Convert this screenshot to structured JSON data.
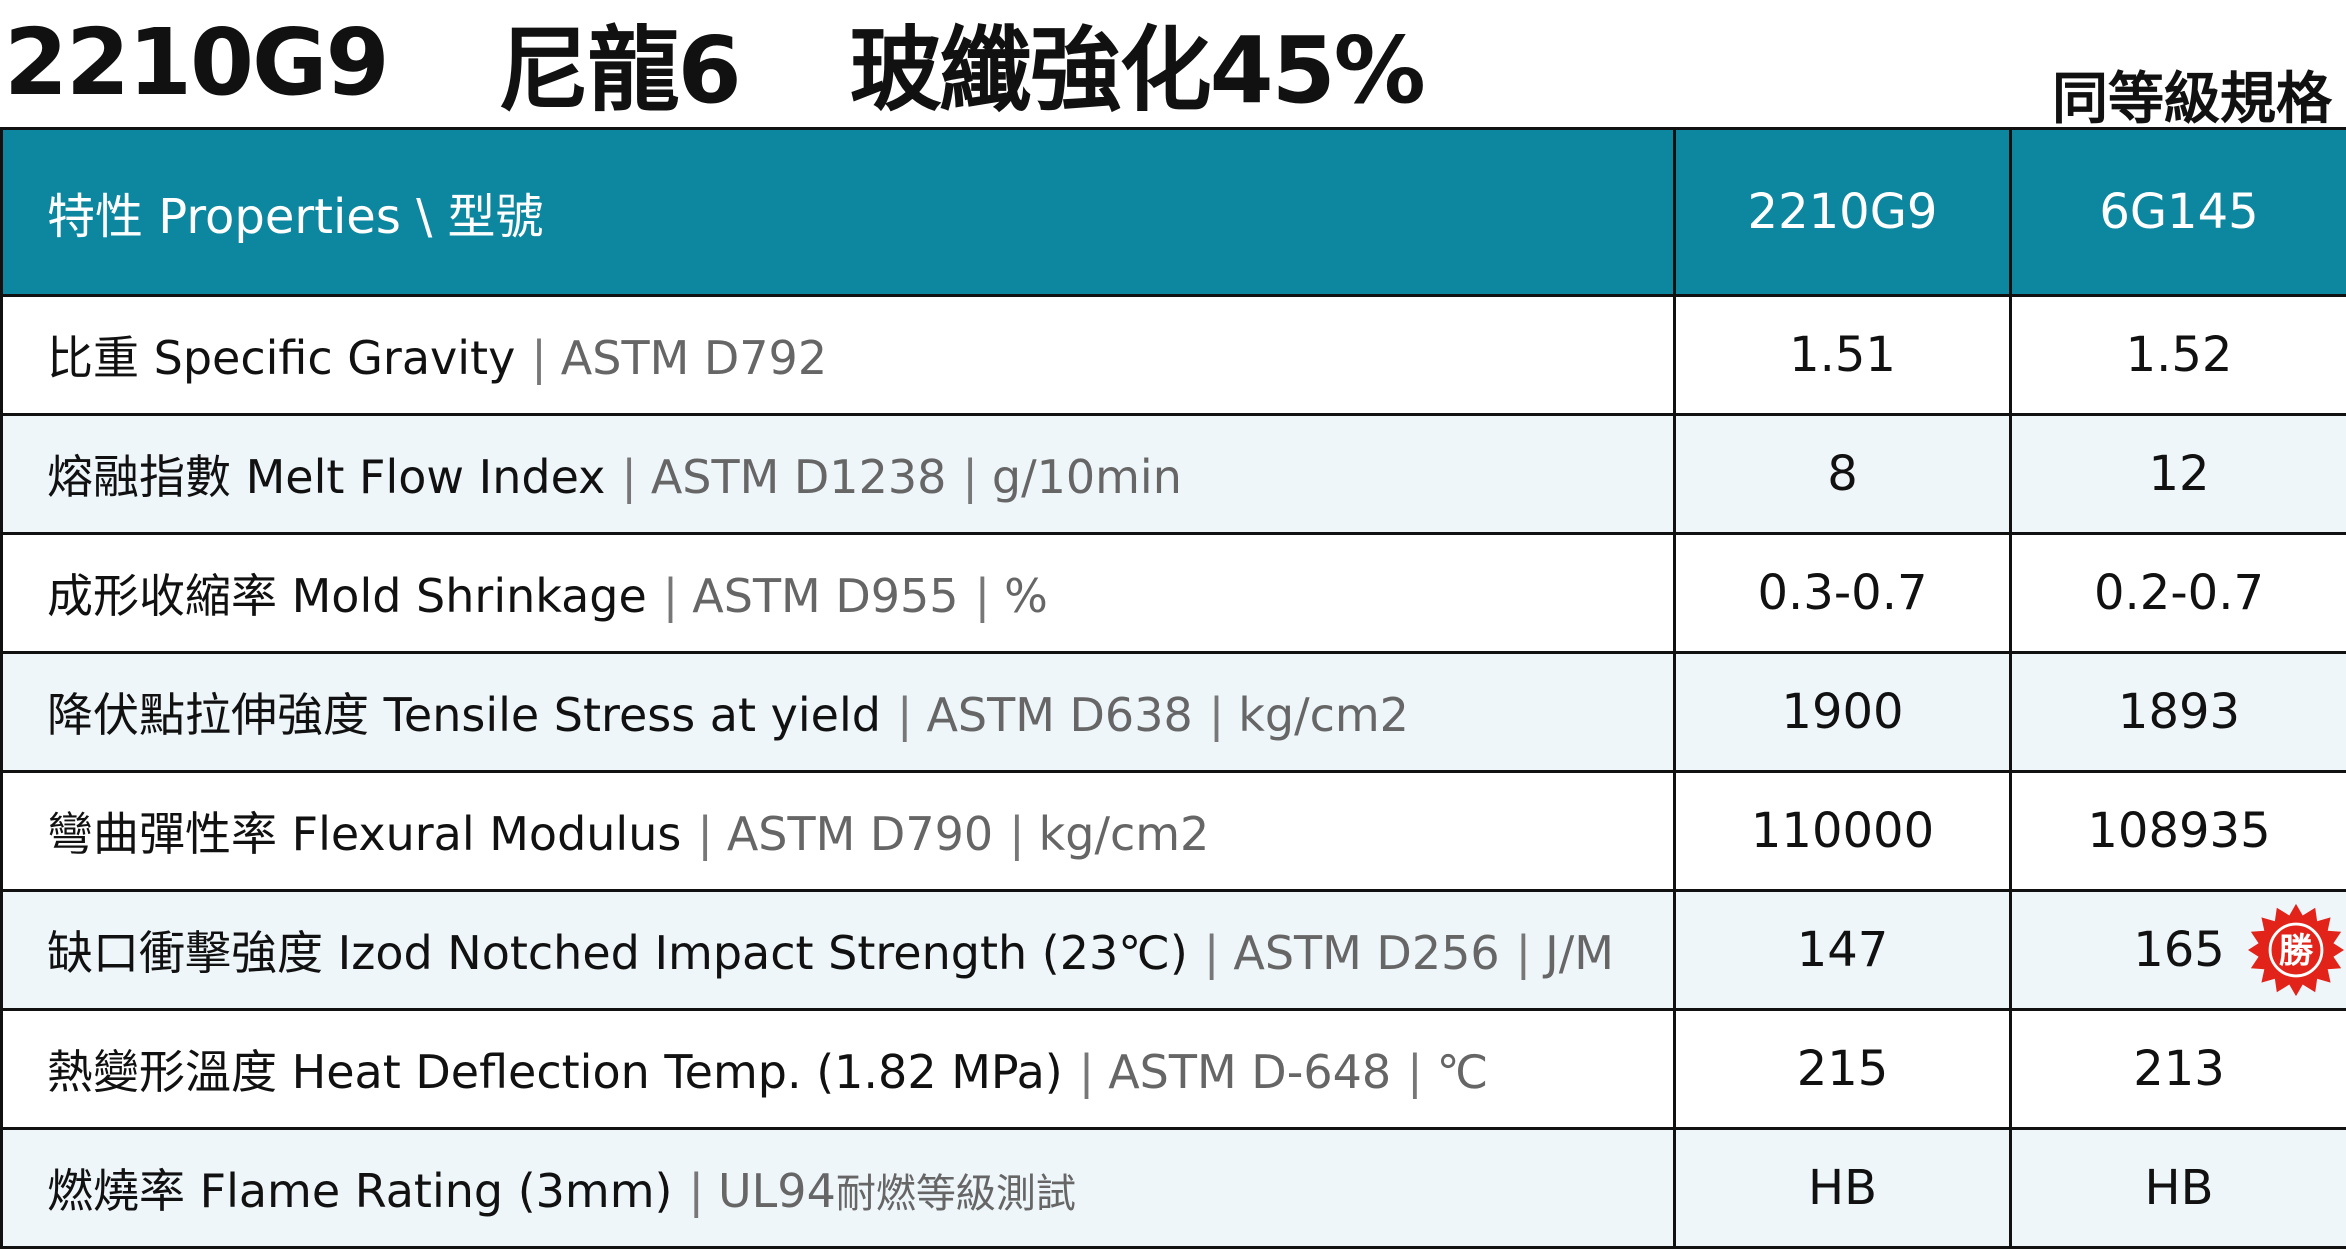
{
  "header": {
    "title_model": "2210G9",
    "title_material": "尼龍6",
    "title_reinforce": "玻纖強化45%",
    "equivalent_label": "同等級規格"
  },
  "table": {
    "header_property": "特性 Properties \\ 型號",
    "header_model_a": "2210G9",
    "header_model_b": "6G145",
    "rows": [
      {
        "name": "比重 Specific Gravity",
        "standard": "ASTM D792",
        "unit": "",
        "a": "1.51",
        "b": "1.52"
      },
      {
        "name": "熔融指數 Melt Flow Index",
        "standard": "ASTM D1238",
        "unit": "g/10min",
        "a": "8",
        "b": "12"
      },
      {
        "name": "成形收縮率 Mold Shrinkage",
        "standard": "ASTM D955",
        "unit": "%",
        "a": "0.3-0.7",
        "b": "0.2-0.7"
      },
      {
        "name": "降伏點拉伸強度 Tensile Stress at yield",
        "standard": "ASTM D638",
        "unit": "kg/cm2",
        "a": "1900",
        "b": "1893"
      },
      {
        "name": "彎曲彈性率 Flexural Modulus",
        "standard": "ASTM D790",
        "unit": "kg/cm2",
        "a": "110000",
        "b": "108935"
      },
      {
        "name": "缺口衝擊強度 Izod Notched Impact Strength (23℃)",
        "standard": "ASTM D256",
        "unit": "J/M",
        "a": "147",
        "b": "165"
      },
      {
        "name": "熱變形溫度 Heat Deflection Temp. (1.82 MPa)",
        "standard": "ASTM D-648",
        "unit": "℃",
        "a": "215",
        "b": "213"
      },
      {
        "name": "燃燒率 Flame Rating (3mm)",
        "standard": "UL94",
        "standard_note": "耐燃等級測試",
        "unit": "",
        "a": "HB",
        "b": "HB"
      }
    ],
    "win_badge_label": "勝",
    "win_badge_color": "#e2231a",
    "header_color": "#0d87a0",
    "alt_row_color": "#eef6fa"
  }
}
